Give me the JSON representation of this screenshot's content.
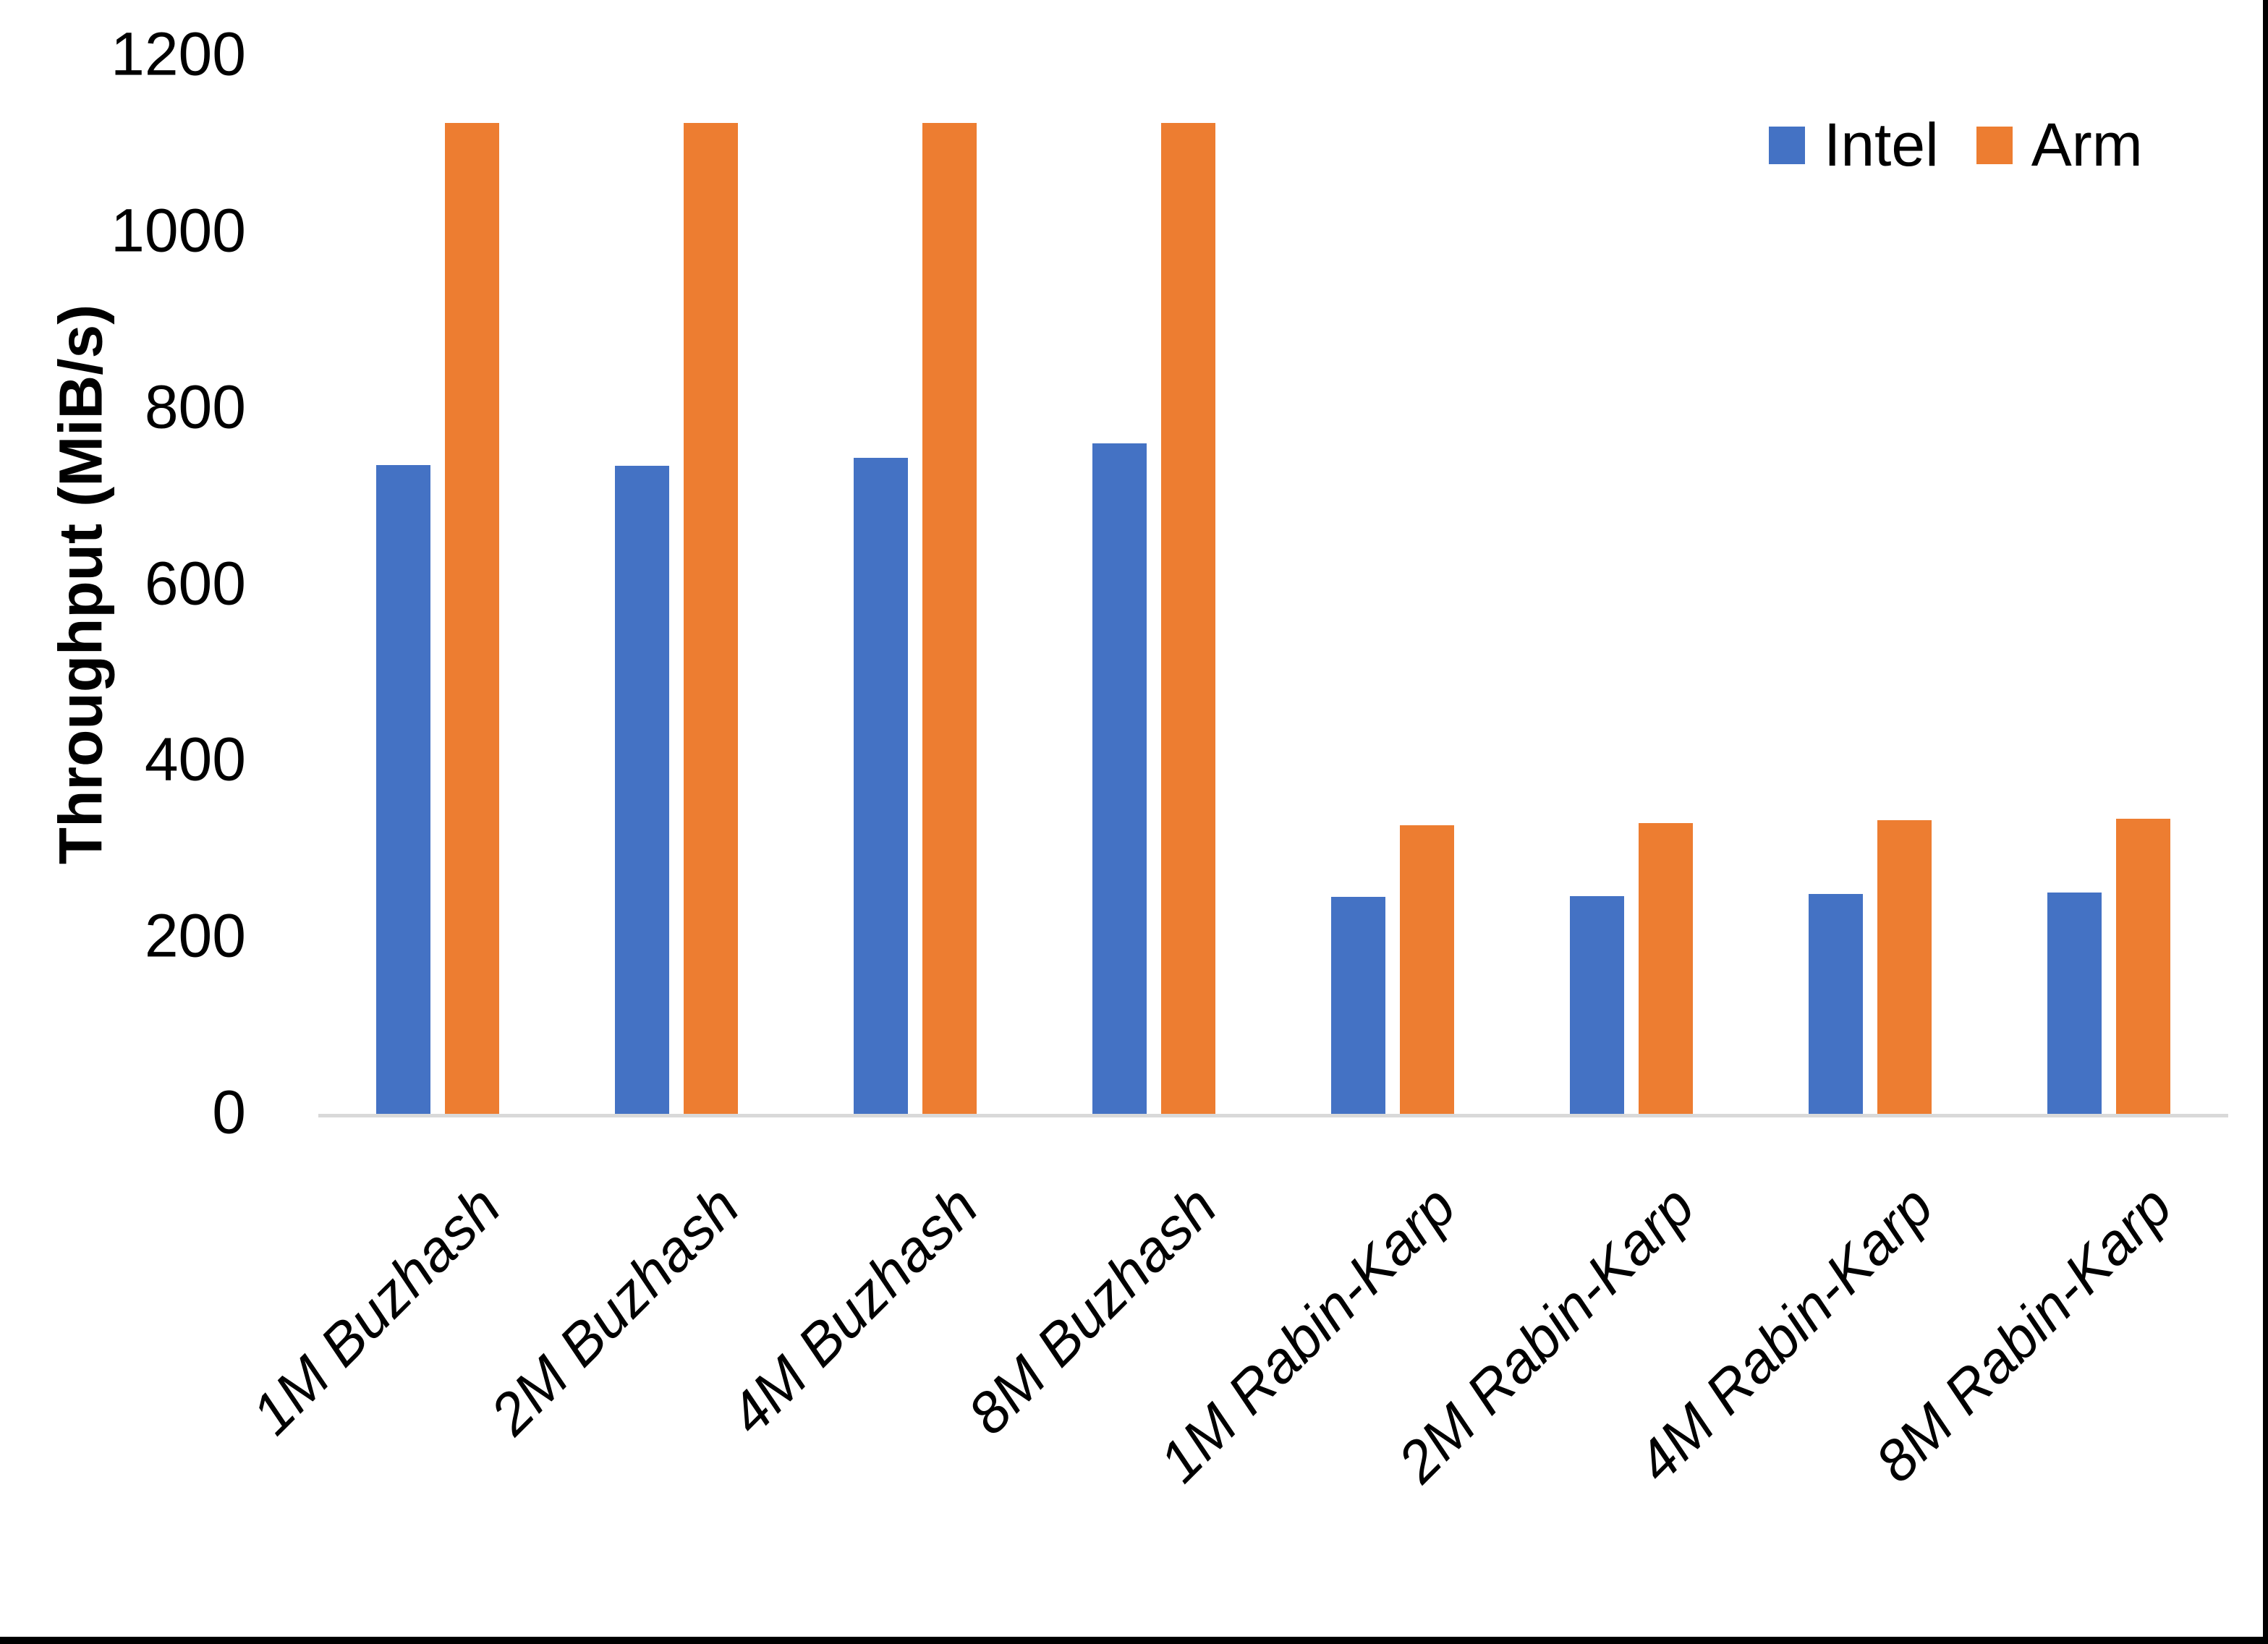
{
  "chart_data": {
    "type": "bar",
    "title": "",
    "xlabel": "",
    "ylabel": "Throughput (MiB/s)",
    "ylim": [
      0,
      1200
    ],
    "yticks": [
      0,
      200,
      400,
      600,
      800,
      1000,
      1200
    ],
    "grid": false,
    "legend_position": "top-right",
    "categories": [
      "1M Buzhash",
      "2M Buzhash",
      "4M Buzhash",
      "8M Buzhash",
      "1M Rabin-Karp",
      "2M Rabin-Karp",
      "4M Rabin-Karp",
      "8M Rabin-Karp"
    ],
    "series": [
      {
        "name": "Intel",
        "color": "#4472C4",
        "values": [
          736,
          735,
          744,
          760,
          246,
          247,
          249,
          251
        ]
      },
      {
        "name": "Arm",
        "color": "#ED7D31",
        "values": [
          1124,
          1124,
          1124,
          1124,
          327,
          330,
          333,
          335
        ]
      }
    ]
  },
  "colors": {
    "axis_line": "#D9D9D9",
    "text": "#000000",
    "background": "#FFFFFF",
    "frame": "#000000"
  }
}
